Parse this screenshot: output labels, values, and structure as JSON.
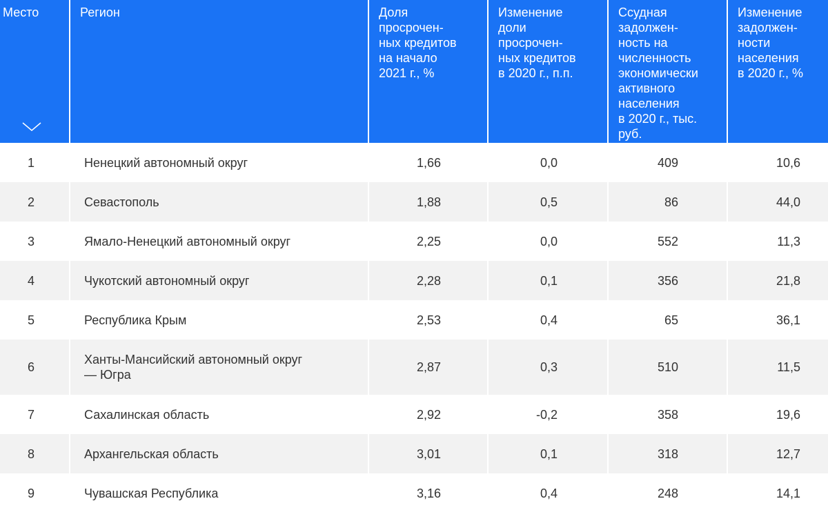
{
  "table": {
    "headers": [
      "Место",
      "Регион",
      "Доля просрочен-ных кредитов на начало 2021 г., %",
      "Изменение доли просрочен-ных кредитов в 2020 г., п.п.",
      "Ссудная задолжен-ность на численность экономически активного населения в 2020 г., тыс. руб.",
      "Изменение задолжен-ности населения в 2020 г., %"
    ],
    "header_lines": [
      [
        "Место"
      ],
      [
        "Регион"
      ],
      [
        "Доля",
        "просрочен-",
        "ных кредитов",
        "на начало",
        "2021 г., %"
      ],
      [
        "Изменение",
        "доли",
        "просрочен-",
        "ных кредитов",
        "в 2020 г., п.п."
      ],
      [
        "Ссудная",
        "задолжен-",
        "ность на",
        "численность",
        "экономически",
        "активного",
        "населения",
        "в 2020 г., тыс.",
        "руб."
      ],
      [
        "Изменение",
        "задолжен-",
        "ности",
        "населения",
        "в 2020 г., %"
      ]
    ],
    "sort_icon": "chevron-down-icon",
    "rows": [
      {
        "rank": "1",
        "region": "Ненецкий автономный округ",
        "overdue_share": "1,66",
        "overdue_change": "0,0",
        "debt_per_capita": "409",
        "debt_change": "10,6"
      },
      {
        "rank": "2",
        "region": "Севастополь",
        "overdue_share": "1,88",
        "overdue_change": "0,5",
        "debt_per_capita": "86",
        "debt_change": "44,0"
      },
      {
        "rank": "3",
        "region": "Ямало-Ненецкий автономный округ",
        "overdue_share": "2,25",
        "overdue_change": "0,0",
        "debt_per_capita": "552",
        "debt_change": "11,3"
      },
      {
        "rank": "4",
        "region": "Чукотский автономный округ",
        "overdue_share": "2,28",
        "overdue_change": "0,1",
        "debt_per_capita": "356",
        "debt_change": "21,8"
      },
      {
        "rank": "5",
        "region": "Республика Крым",
        "overdue_share": "2,53",
        "overdue_change": "0,4",
        "debt_per_capita": "65",
        "debt_change": "36,1"
      },
      {
        "rank": "6",
        "region": "Ханты-Мансийский автономный округ — Югра",
        "region_lines": [
          "Ханты-Мансийский автономный округ",
          "— Югра"
        ],
        "overdue_share": "2,87",
        "overdue_change": "0,3",
        "debt_per_capita": "510",
        "debt_change": "11,5"
      },
      {
        "rank": "7",
        "region": "Сахалинская область",
        "overdue_share": "2,92",
        "overdue_change": "-0,2",
        "debt_per_capita": "358",
        "debt_change": "19,6"
      },
      {
        "rank": "8",
        "region": "Архангельская область",
        "overdue_share": "3,01",
        "overdue_change": "0,1",
        "debt_per_capita": "318",
        "debt_change": "12,7"
      },
      {
        "rank": "9",
        "region": "Чувашская Республика",
        "overdue_share": "3,16",
        "overdue_change": "0,4",
        "debt_per_capita": "248",
        "debt_change": "14,1"
      }
    ]
  },
  "colors": {
    "header_bg": "#1a73f5",
    "header_text": "#ffffff",
    "row_alt_bg": "#f2f2f2",
    "text": "#333333"
  }
}
